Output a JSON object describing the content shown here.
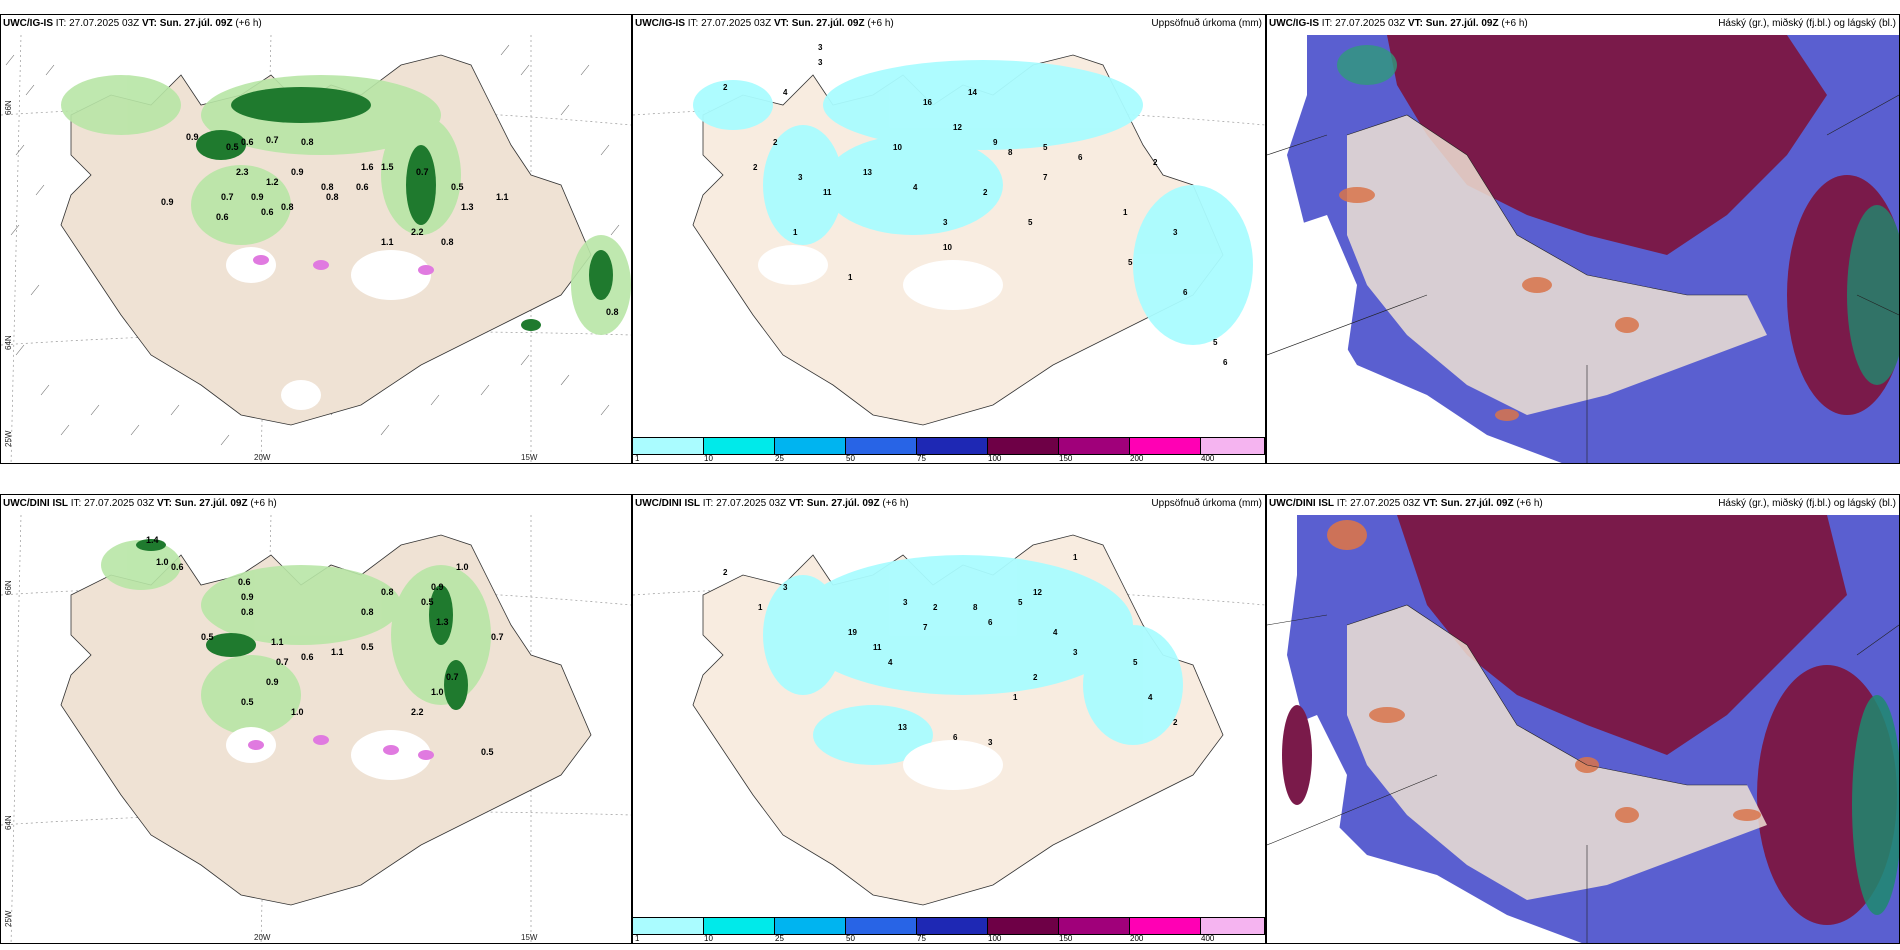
{
  "panels": {
    "r1c1": {
      "model": "UWC/IG-IS",
      "issue": "IT: 27.07.2025 03Z",
      "vt_label": "VT:",
      "vt": "Sun. 27.júl. 09Z",
      "offset": "(+6 h)"
    },
    "r1c2": {
      "model": "UWC/IG-IS",
      "issue": "IT: 27.07.2025 03Z",
      "vt_label": "VT:",
      "vt": "Sun. 27.júl. 09Z",
      "offset": "(+6 h)",
      "right": "Uppsöfnuð úrkoma (mm)"
    },
    "r1c3": {
      "model": "UWC/IG-IS",
      "issue": "IT: 27.07.2025 03Z",
      "vt_label": "VT:",
      "vt": "Sun. 27.júl. 09Z",
      "offset": "(+6 h)",
      "right": "Háský (gr.), miðský (fj.bl.) og lágský (bl.)"
    },
    "r2c1": {
      "model": "UWC/DINI ISL",
      "issue": "IT: 27.07.2025 03Z",
      "vt_label": "VT:",
      "vt": "Sun. 27.júl. 09Z",
      "offset": "(+6 h)"
    },
    "r2c2": {
      "model": "UWC/DINI ISL",
      "issue": "IT: 27.07.2025 03Z",
      "vt_label": "VT:",
      "vt": "Sun. 27.júl. 09Z",
      "offset": "(+6 h)",
      "right": "Uppsöfnuð úrkoma (mm)"
    },
    "r2c3": {
      "model": "UWC/DINI ISL",
      "issue": "IT: 27.07.2025 03Z",
      "vt_label": "VT:",
      "vt": "Sun. 27.júl. 09Z",
      "offset": "(+6 h)",
      "right": "Háský (gr.), miðský (fj.bl.) og lágský (bl.)"
    }
  },
  "axes": {
    "lat66": "66N",
    "lat64": "64N",
    "lon25": "25W",
    "lon20": "20W",
    "lon15": "15W"
  },
  "colorbar": {
    "ticks": [
      "1",
      "10",
      "25",
      "50",
      "75",
      "100",
      "150",
      "200",
      "400"
    ],
    "colors": [
      "#aafcff",
      "#00eaea",
      "#00b4f0",
      "#2864e6",
      "#1e28b4",
      "#6e0046",
      "#a0007a",
      "#ff00b4",
      "#f5b4f0"
    ]
  },
  "rain_labels_top": [
    "0.9",
    "0.5",
    "0.6",
    "0.7",
    "2.3",
    "1.2",
    "0.8",
    "0.9",
    "0.8",
    "0.6",
    "0.8",
    "0.9",
    "0.7",
    "0.6",
    "0.8",
    "1.6",
    "1.5",
    "0.7",
    "0.6",
    "0.5",
    "1.1",
    "1.3",
    "1.1",
    "2.2",
    "0.8",
    "0.9",
    "0.8"
  ],
  "rain_labels_bot": [
    "1.4",
    "1.0",
    "0.6",
    "0.9",
    "0.6",
    "0.8",
    "1.1",
    "0.7",
    "0.8",
    "0.5",
    "0.9",
    "1.0",
    "0.5",
    "1.3",
    "1.0",
    "0.7",
    "1.1",
    "0.6",
    "0.9",
    "0.7",
    "0.5",
    "1.0",
    "2.2",
    "0.5",
    "0.8",
    "0.5"
  ],
  "accum_labels_top": [
    "3",
    "3",
    "2",
    "2",
    "4",
    "1",
    "2",
    "3",
    "16",
    "14",
    "12",
    "10",
    "9",
    "8",
    "5",
    "6",
    "7",
    "4",
    "3",
    "2",
    "1",
    "11",
    "10",
    "5",
    "13",
    "1",
    "2",
    "3",
    "5",
    "6",
    "5",
    "6"
  ],
  "accum_labels_bot": [
    "2",
    "1",
    "3",
    "19",
    "11",
    "4",
    "3",
    "2",
    "7",
    "8",
    "6",
    "5",
    "12",
    "4",
    "3",
    "2",
    "1",
    "13",
    "6",
    "3",
    "5",
    "4",
    "2",
    "1"
  ]
}
